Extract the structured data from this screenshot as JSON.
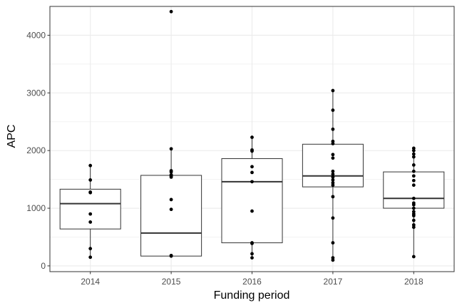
{
  "chart_data": {
    "type": "box",
    "xlabel": "Funding period",
    "ylabel": "APC",
    "ylim": [
      -100,
      4500
    ],
    "y_ticks": [
      0,
      1000,
      2000,
      3000,
      4000
    ],
    "grid": true,
    "categories": [
      "2014",
      "2015",
      "2016",
      "2017",
      "2018"
    ],
    "boxes": [
      {
        "category": "2014",
        "min": 150,
        "q1": 640,
        "median": 1080,
        "q3": 1330,
        "max": 1740
      },
      {
        "category": "2015",
        "min": 170,
        "q1": 170,
        "median": 570,
        "q3": 1570,
        "max": 2030
      },
      {
        "category": "2016",
        "min": 140,
        "q1": 400,
        "median": 1460,
        "q3": 1860,
        "max": 2230
      },
      {
        "category": "2017",
        "min": 100,
        "q1": 1370,
        "median": 1560,
        "q3": 2110,
        "max": 3040
      },
      {
        "category": "2018",
        "min": 160,
        "q1": 1000,
        "median": 1170,
        "q3": 1630,
        "max": 2040
      }
    ],
    "points": [
      {
        "category": "2014",
        "values": [
          1740,
          1490,
          1280,
          1270,
          900,
          760,
          300,
          150
        ]
      },
      {
        "category": "2015",
        "values": [
          4410,
          2030,
          1650,
          1630,
          1580,
          1560,
          1540,
          1150,
          980,
          180,
          170
        ]
      },
      {
        "category": "2016",
        "values": [
          2230,
          2010,
          1990,
          1720,
          1620,
          1460,
          950,
          400,
          390,
          210,
          140
        ]
      },
      {
        "category": "2017",
        "values": [
          3040,
          2700,
          2370,
          2160,
          2120,
          1930,
          1870,
          1640,
          1590,
          1540,
          1490,
          1440,
          1400,
          1200,
          830,
          400,
          140,
          100
        ]
      },
      {
        "category": "2018",
        "values": [
          2040,
          2000,
          1940,
          1890,
          1750,
          1640,
          1560,
          1480,
          1400,
          1170,
          1090,
          1060,
          1000,
          940,
          900,
          870,
          790,
          710,
          670,
          160
        ]
      }
    ]
  }
}
